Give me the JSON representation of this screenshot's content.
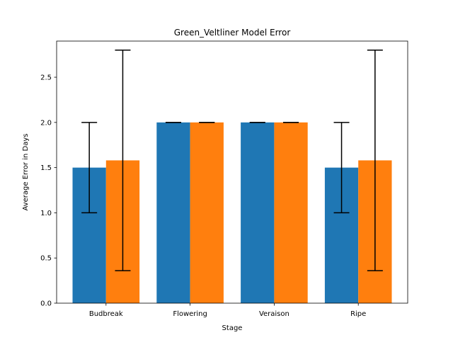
{
  "chart_data": {
    "type": "bar",
    "title": "Green_Veltliner Model Error",
    "xlabel": "Stage",
    "ylabel": "Average Error in Days",
    "categories": [
      "Budbreak",
      "Flowering",
      "Veraison",
      "Ripe"
    ],
    "ylim": [
      0,
      2.9
    ],
    "yticks": [
      0.0,
      0.5,
      1.0,
      1.5,
      2.0,
      2.5
    ],
    "ytick_labels": [
      "0.0",
      "0.5",
      "1.0",
      "1.5",
      "2.0",
      "2.5"
    ],
    "grid": false,
    "legend": "none",
    "series": [
      {
        "color": "#1f77b4",
        "values": [
          1.5,
          2.0,
          2.0,
          1.5
        ],
        "errors": [
          0.5,
          0.0,
          0.0,
          0.5
        ]
      },
      {
        "color": "#ff7f0e",
        "values": [
          1.58,
          2.0,
          2.0,
          1.58
        ],
        "errors": [
          1.22,
          0.0,
          0.0,
          1.22
        ]
      }
    ]
  }
}
